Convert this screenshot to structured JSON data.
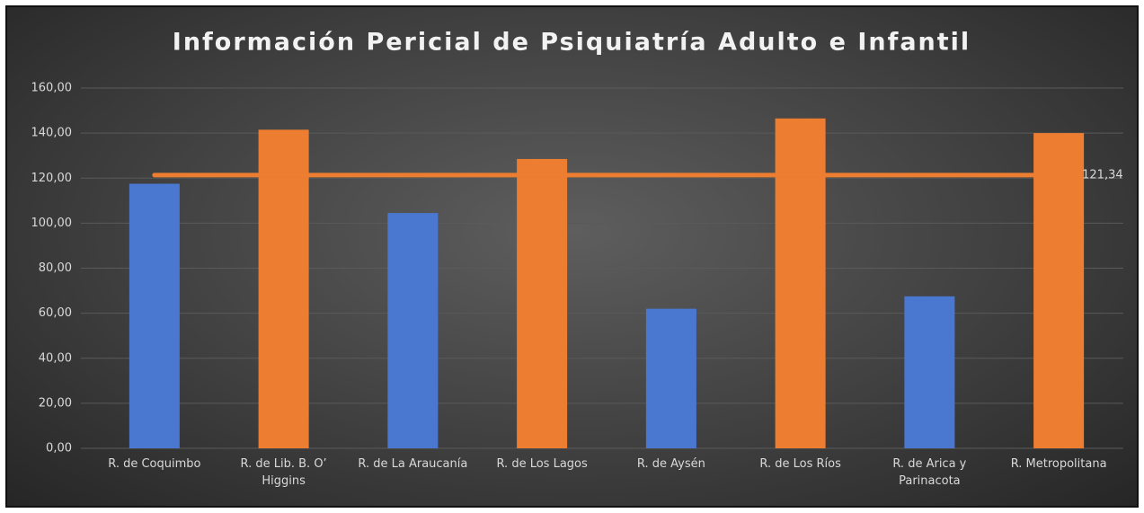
{
  "chart_data": {
    "type": "bar",
    "title": "Información Pericial de Psiquiatría Adulto e Infantil",
    "categories": [
      "R. de Coquimbo",
      "R. de Lib. B. O’ Higgins",
      "R. de La Araucanía",
      "R. de Los Lagos",
      "R. de Aysén",
      "R. de Los Ríos",
      "R. de Arica y Parinacota",
      "R. Metropolitana"
    ],
    "values": [
      117.5,
      141.5,
      104.5,
      128.5,
      62,
      146.5,
      67.5,
      140
    ],
    "colors": [
      "#4a78d0",
      "#ed7d31",
      "#4a78d0",
      "#ed7d31",
      "#4a78d0",
      "#ed7d31",
      "#4a78d0",
      "#ed7d31"
    ],
    "average": {
      "value": 121.34,
      "label": "121,34",
      "color": "#ed7d31"
    },
    "ylim": [
      0,
      160
    ],
    "yticks": [
      {
        "value": 0,
        "label": "0,00"
      },
      {
        "value": 20,
        "label": "20,00"
      },
      {
        "value": 40,
        "label": "40,00"
      },
      {
        "value": 60,
        "label": "60,00"
      },
      {
        "value": 80,
        "label": "80,00"
      },
      {
        "value": 100,
        "label": "100,00"
      },
      {
        "value": 120,
        "label": "120,00"
      },
      {
        "value": 140,
        "label": "140,00"
      },
      {
        "value": 160,
        "label": "160,00"
      }
    ],
    "grid": true
  }
}
